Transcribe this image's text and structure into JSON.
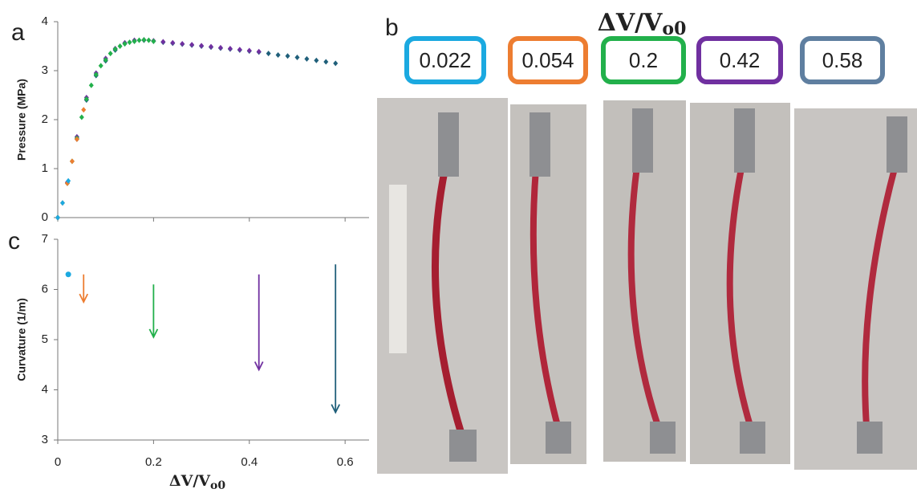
{
  "panel_labels": [
    "a",
    "b",
    "c"
  ],
  "chart_data": [
    {
      "type": "scatter",
      "ylabel": "Pressure (MPa)",
      "xlim": [
        0,
        0.65
      ],
      "xticks": [
        0,
        0.2,
        0.4,
        0.6
      ],
      "ylim": [
        0,
        4
      ],
      "yticks": [
        0,
        1,
        2,
        3,
        4
      ],
      "series": [
        {
          "color": "#1f5f7a",
          "x": [
            0,
            0.02,
            0.04,
            0.06,
            0.08,
            0.1,
            0.12,
            0.14,
            0.16,
            0.18,
            0.2,
            0.22,
            0.24,
            0.26,
            0.28,
            0.3,
            0.32,
            0.34,
            0.36,
            0.38,
            0.4,
            0.42,
            0.44,
            0.46,
            0.48,
            0.5,
            0.52,
            0.54,
            0.56,
            0.58
          ],
          "values": [
            0,
            0.7,
            1.6,
            2.4,
            2.9,
            3.2,
            3.42,
            3.55,
            3.6,
            3.62,
            3.6,
            3.58,
            3.56,
            3.54,
            3.52,
            3.5,
            3.48,
            3.46,
            3.44,
            3.42,
            3.4,
            3.38,
            3.35,
            3.32,
            3.3,
            3.27,
            3.24,
            3.21,
            3.18,
            3.15
          ]
        },
        {
          "color": "#7030a0",
          "x": [
            0,
            0.02,
            0.04,
            0.06,
            0.08,
            0.1,
            0.12,
            0.14,
            0.16,
            0.18,
            0.2,
            0.22,
            0.24,
            0.26,
            0.28,
            0.3,
            0.32,
            0.34,
            0.36,
            0.38,
            0.4,
            0.42
          ],
          "values": [
            0,
            0.72,
            1.65,
            2.45,
            2.95,
            3.25,
            3.45,
            3.57,
            3.62,
            3.63,
            3.61,
            3.59,
            3.57,
            3.55,
            3.53,
            3.51,
            3.49,
            3.47,
            3.45,
            3.43,
            3.41,
            3.39
          ]
        },
        {
          "color": "#22b04b",
          "x": [
            0,
            0.02,
            0.03,
            0.04,
            0.05,
            0.06,
            0.07,
            0.08,
            0.09,
            0.1,
            0.11,
            0.12,
            0.13,
            0.14,
            0.15,
            0.16,
            0.17,
            0.18,
            0.19,
            0.2
          ],
          "values": [
            0,
            0.7,
            1.15,
            1.62,
            2.05,
            2.42,
            2.7,
            2.92,
            3.1,
            3.22,
            3.35,
            3.44,
            3.5,
            3.55,
            3.58,
            3.6,
            3.62,
            3.63,
            3.62,
            3.6
          ]
        },
        {
          "color": "#ed7d31",
          "x": [
            0,
            0.01,
            0.02,
            0.03,
            0.04,
            0.054
          ],
          "values": [
            0,
            0.3,
            0.7,
            1.15,
            1.6,
            2.2
          ]
        },
        {
          "color": "#1ba9e0",
          "x": [
            0,
            0.01,
            0.022
          ],
          "values": [
            0,
            0.3,
            0.75
          ]
        }
      ]
    },
    {
      "type": "arrows",
      "xlabel": {
        "main": "ΔV/V",
        "sub": "o0"
      },
      "ylabel": "Curvature (1/m)",
      "xlim": [
        0,
        0.65
      ],
      "xticks": [
        0,
        0.2,
        0.4,
        0.6
      ],
      "ylim": [
        3,
        7
      ],
      "yticks": [
        3,
        4,
        5,
        6,
        7
      ],
      "series": [
        {
          "color": "#1ba9e0",
          "x": [
            0.022
          ],
          "values": [
            6.3
          ]
        },
        {
          "color": "#ed7d31",
          "x": [
            0.054
          ],
          "values": [
            6.3
          ],
          "end": [
            5.75
          ]
        },
        {
          "color": "#22b04b",
          "x": [
            0.2
          ],
          "values": [
            6.1
          ],
          "end": [
            5.05
          ]
        },
        {
          "color": "#7030a0",
          "x": [
            0.42
          ],
          "values": [
            6.3
          ],
          "end": [
            4.4
          ]
        },
        {
          "color": "#1f5f7a",
          "x": [
            0.58
          ],
          "values": [
            6.5
          ],
          "end": [
            3.55
          ]
        }
      ]
    }
  ],
  "panel_b": {
    "title": {
      "main": "ΔV/V",
      "sub": "o0"
    },
    "boxes": [
      {
        "label": "0.022",
        "color": "#1ba9e0"
      },
      {
        "label": "0.054",
        "color": "#ed7d31"
      },
      {
        "label": "0.2",
        "color": "#22b04b"
      },
      {
        "label": "0.42",
        "color": "#7030a0"
      },
      {
        "label": "0.58",
        "color": "#5f7fa0"
      }
    ]
  }
}
